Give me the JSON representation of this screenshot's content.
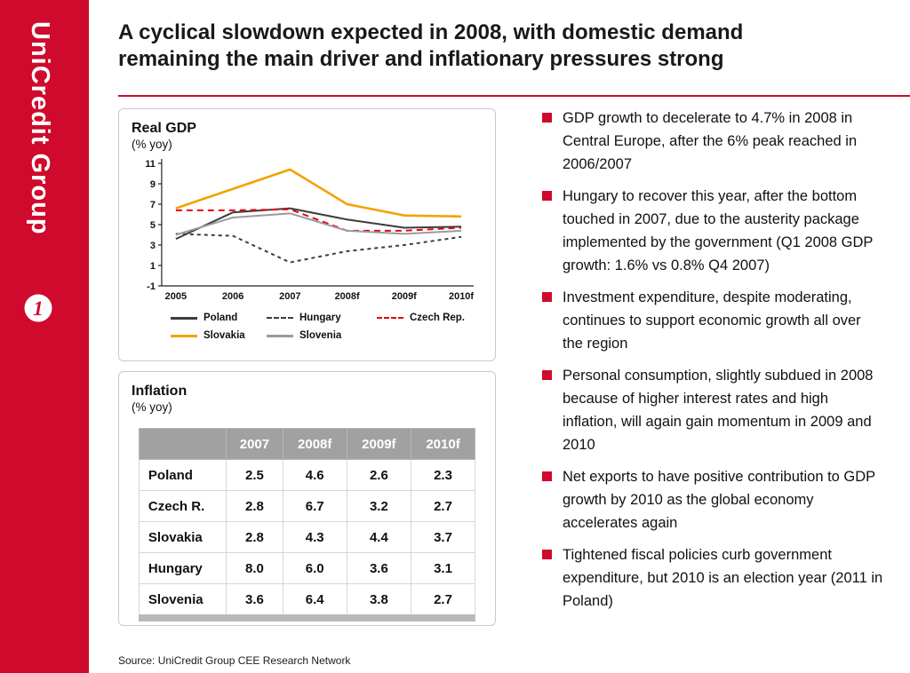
{
  "brand": {
    "name": "UniCredit Group",
    "red": "#cf0a2c"
  },
  "header": {
    "title": "A cyclical slowdown expected in 2008, with domestic demand remaining the main driver and inflationary pressures strong"
  },
  "gdp_panel": {
    "title": "Real GDP",
    "subtitle": "(% yoy)"
  },
  "chart_data": {
    "type": "line",
    "title": "Real GDP (% yoy)",
    "categories": [
      "2005",
      "2006",
      "2007",
      "2008f",
      "2009f",
      "2010f"
    ],
    "ylim": [
      -1,
      11
    ],
    "yticks": [
      -1,
      1,
      3,
      5,
      7,
      9,
      11
    ],
    "grid": false,
    "legend_position": "bottom",
    "series": [
      {
        "name": "Poland",
        "color": "#3c3c3c",
        "dash": "solid",
        "values": [
          3.6,
          6.2,
          6.6,
          5.5,
          4.7,
          4.8
        ]
      },
      {
        "name": "Hungary",
        "color": "#3c3c3c",
        "dash": "dashed",
        "values": [
          4.1,
          3.9,
          1.3,
          2.4,
          3.0,
          3.8
        ]
      },
      {
        "name": "Czech Rep.",
        "color": "#e30613",
        "dash": "dashed",
        "values": [
          6.4,
          6.4,
          6.5,
          4.4,
          4.4,
          4.7
        ]
      },
      {
        "name": "Slovakia",
        "color": "#f4a100",
        "dash": "solid",
        "values": [
          6.6,
          8.5,
          10.4,
          7.0,
          5.9,
          5.8
        ]
      },
      {
        "name": "Slovenia",
        "color": "#9b9b9b",
        "dash": "solid",
        "values": [
          4.0,
          5.7,
          6.1,
          4.4,
          4.1,
          4.4
        ]
      }
    ]
  },
  "inflation_panel": {
    "title": "Inflation",
    "subtitle": "(% yoy)",
    "table": {
      "columns": [
        "",
        "2007",
        "2008f",
        "2009f",
        "2010f"
      ],
      "rows": [
        {
          "label": "Poland",
          "values": [
            "2.5",
            "4.6",
            "2.6",
            "2.3"
          ]
        },
        {
          "label": "Czech R.",
          "values": [
            "2.8",
            "6.7",
            "3.2",
            "2.7"
          ]
        },
        {
          "label": "Slovakia",
          "values": [
            "2.8",
            "4.3",
            "4.4",
            "3.7"
          ]
        },
        {
          "label": "Hungary",
          "values": [
            "8.0",
            "6.0",
            "3.6",
            "3.1"
          ]
        },
        {
          "label": "Slovenia",
          "values": [
            "3.6",
            "6.4",
            "3.8",
            "2.7"
          ]
        }
      ]
    }
  },
  "bullets": [
    "GDP growth to decelerate to 4.7% in 2008 in Central Europe, after the 6% peak reached in 2006/2007",
    "Hungary to recover this year, after the bottom touched in 2007, due to the austerity package implemented by the government (Q1 2008 GDP growth: 1.6% vs 0.8% Q4 2007)",
    "Investment expenditure, despite moderating, continues to support economic growth all over the region",
    "Personal consumption, slightly subdued in 2008 because of higher interest rates and high inflation, will again gain momentum in 2009 and 2010",
    "Net exports to have positive contribution to GDP growth by 2010 as the global economy accelerates again",
    "Tightened fiscal policies curb government expenditure, but 2010 is an election year (2011 in Poland)"
  ],
  "footer": {
    "source": "Source: UniCredit Group CEE Research Network"
  }
}
